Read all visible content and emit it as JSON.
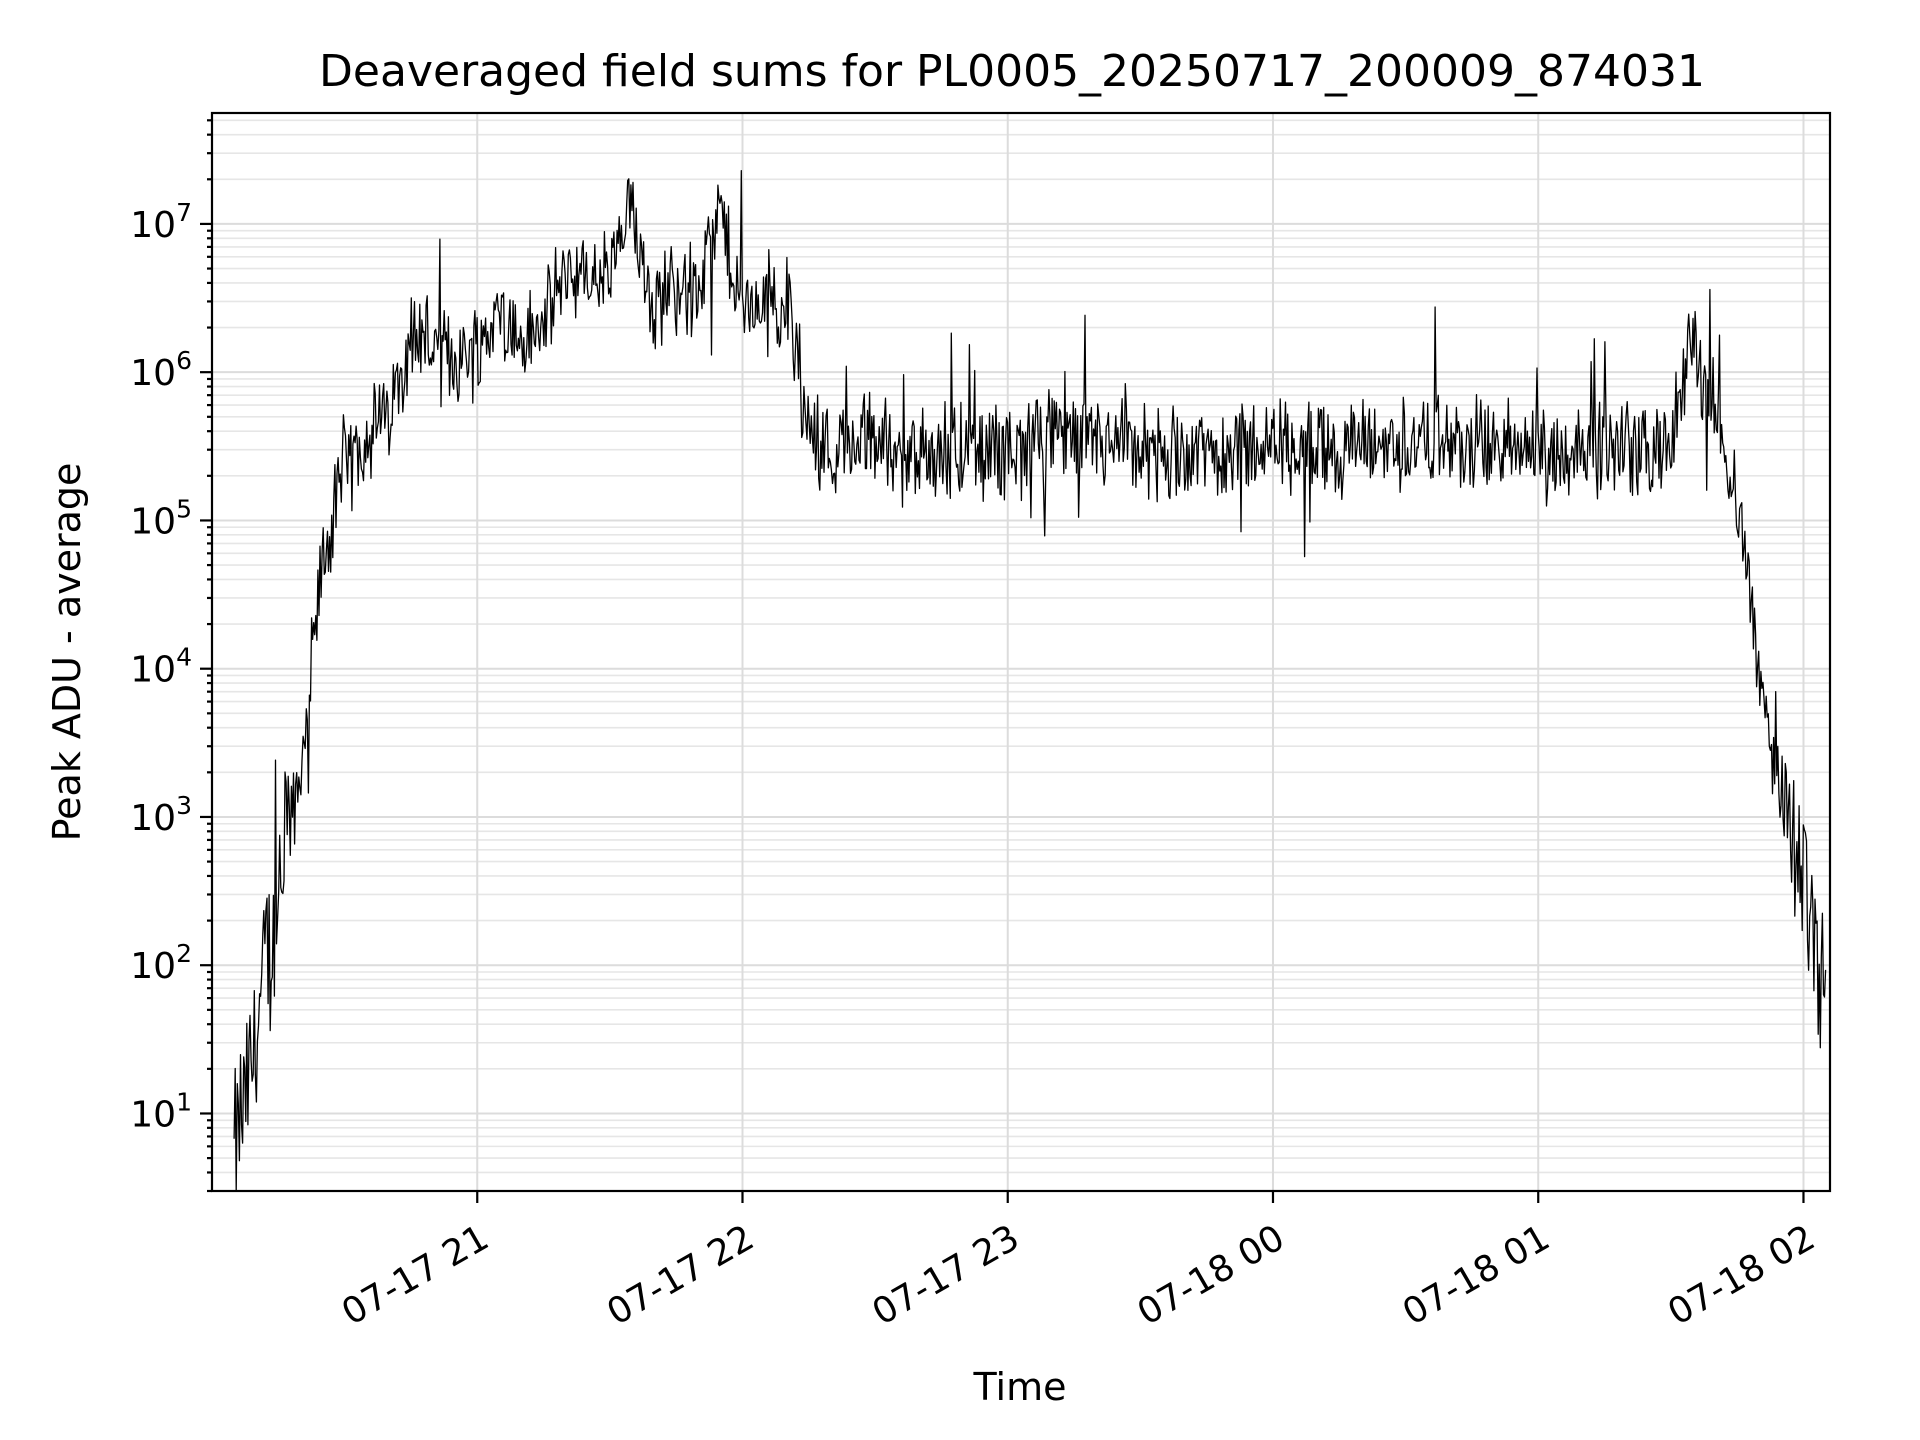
{
  "chart_data": {
    "type": "line",
    "title": "Deaveraged field sums for PL0005_20250717_200009_874031",
    "xlabel": "Time",
    "ylabel": "Peak ADU - average",
    "y_scale": "log",
    "ylim": [
      3,
      56000000
    ],
    "xlim": [
      "07-17 20:00:00",
      "07-18 02:06:00"
    ],
    "grid": true,
    "legend": "none",
    "line_color": "#000000",
    "x_ticks": [
      "07-17 21",
      "07-17 22",
      "07-17 23",
      "07-18 00",
      "07-18 01",
      "07-18 02"
    ],
    "y_ticks": [
      {
        "base": "10",
        "exp": "1",
        "value": 10
      },
      {
        "base": "10",
        "exp": "2",
        "value": 100
      },
      {
        "base": "10",
        "exp": "3",
        "value": 1000
      },
      {
        "base": "10",
        "exp": "4",
        "value": 10000
      },
      {
        "base": "10",
        "exp": "5",
        "value": 100000
      },
      {
        "base": "10",
        "exp": "6",
        "value": 1000000
      },
      {
        "base": "10",
        "exp": "7",
        "value": 10000000
      }
    ],
    "series": [
      {
        "x": [
          "07-17 20:05",
          "07-17 20:10",
          "07-17 20:12",
          "07-17 20:15",
          "07-17 20:17",
          "07-17 20:20",
          "07-17 20:25",
          "07-17 20:30",
          "07-17 20:35",
          "07-17 20:40",
          "07-17 20:45",
          "07-17 20:50",
          "07-17 20:55",
          "07-17 21:00",
          "07-17 21:05",
          "07-17 21:10",
          "07-17 21:15",
          "07-17 21:20",
          "07-17 21:25",
          "07-17 21:30",
          "07-17 21:35",
          "07-17 21:40",
          "07-17 21:45",
          "07-17 21:50",
          "07-17 21:55",
          "07-17 22:00",
          "07-17 22:05",
          "07-17 22:10",
          "07-17 22:13",
          "07-17 22:15",
          "07-17 22:20",
          "07-17 22:30",
          "07-17 22:40",
          "07-17 22:50",
          "07-17 23:00",
          "07-17 23:15",
          "07-17 23:30",
          "07-17 23:45",
          "07-18 00:00",
          "07-18 00:15",
          "07-18 00:30",
          "07-18 00:45",
          "07-18 01:00",
          "07-18 01:15",
          "07-18 01:25",
          "07-18 01:30",
          "07-18 01:35",
          "07-18 01:40",
          "07-18 01:45",
          "07-18 01:50",
          "07-18 01:55",
          "07-18 02:00",
          "07-18 02:05"
        ],
        "y": [
          5,
          30,
          100,
          200,
          800,
          2000,
          50000,
          200000,
          400000,
          500000,
          2000000,
          1500000,
          1200000,
          1500000,
          2500000,
          1500000,
          2000000,
          5000000,
          4000000,
          4500000,
          12000000,
          3000000,
          4000000,
          3500000,
          12000000,
          2500000,
          3000000,
          3000000,
          1000000,
          400000,
          300000,
          350000,
          300000,
          280000,
          300000,
          350000,
          280000,
          300000,
          320000,
          300000,
          330000,
          320000,
          300000,
          300000,
          300000,
          320000,
          1700000,
          500000,
          150000,
          10000,
          1500,
          400,
          80
        ]
      }
    ]
  }
}
